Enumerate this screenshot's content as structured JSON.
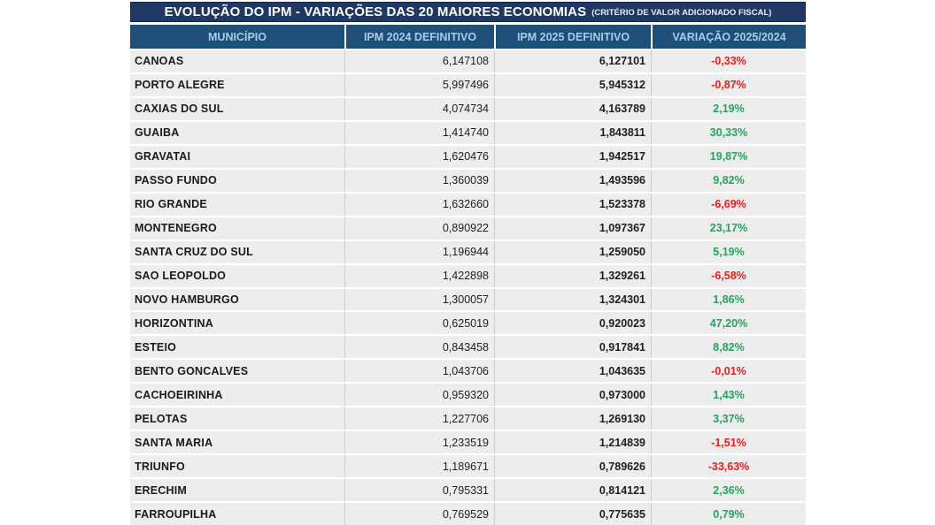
{
  "title_bar": {
    "title": "EVOLUÇÃO DO IPM - VARIAÇÕES DAS 20 MAIORES ECONOMIAS",
    "subtitle": "(CRITÉRIO DE VALOR ADICIONADO FISCAL)"
  },
  "colors": {
    "title_bg": "#1F3864",
    "header_bg": "#1F4E79",
    "header_text": "#A8CBE8",
    "row_bg": "#EDEDED",
    "negative": "#EE1C1C",
    "positive": "#23A45F"
  },
  "chart_data": {
    "type": "table",
    "title": "EVOLUÇÃO DO IPM - VARIAÇÕES DAS 20 MAIORES ECONOMIAS",
    "subtitle": "(CRITÉRIO DE VALOR ADICIONADO FISCAL)",
    "columns": [
      "MUNICÍPIO",
      "IPM 2024 DEFINITIVO",
      "IPM 2025 DEFINITIVO",
      "VARIAÇÃO 2025/2024"
    ],
    "rows": [
      [
        "CANOAS",
        "6,147108",
        "6,127101",
        "-0,33%"
      ],
      [
        "PORTO ALEGRE",
        "5,997496",
        "5,945312",
        "-0,87%"
      ],
      [
        "CAXIAS DO SUL",
        "4,074734",
        "4,163789",
        "2,19%"
      ],
      [
        "GUAIBA",
        "1,414740",
        "1,843811",
        "30,33%"
      ],
      [
        "GRAVATAI",
        "1,620476",
        "1,942517",
        "19,87%"
      ],
      [
        "PASSO FUNDO",
        "1,360039",
        "1,493596",
        "9,82%"
      ],
      [
        "RIO GRANDE",
        "1,632660",
        "1,523378",
        "-6,69%"
      ],
      [
        "MONTENEGRO",
        "0,890922",
        "1,097367",
        "23,17%"
      ],
      [
        "SANTA CRUZ DO SUL",
        "1,196944",
        "1,259050",
        "5,19%"
      ],
      [
        "SAO LEOPOLDO",
        "1,422898",
        "1,329261",
        "-6,58%"
      ],
      [
        "NOVO HAMBURGO",
        "1,300057",
        "1,324301",
        "1,86%"
      ],
      [
        "HORIZONTINA",
        "0,625019",
        "0,920023",
        "47,20%"
      ],
      [
        "ESTEIO",
        "0,843458",
        "0,917841",
        "8,82%"
      ],
      [
        "BENTO GONCALVES",
        "1,043706",
        "1,043635",
        "-0,01%"
      ],
      [
        "CACHOEIRINHA",
        "0,959320",
        "0,973000",
        "1,43%"
      ],
      [
        "PELOTAS",
        "1,227706",
        "1,269130",
        "3,37%"
      ],
      [
        "SANTA MARIA",
        "1,233519",
        "1,214839",
        "-1,51%"
      ],
      [
        "TRIUNFO",
        "1,189671",
        "0,789626",
        "-33,63%"
      ],
      [
        "ERECHIM",
        "0,795331",
        "0,814121",
        "2,36%"
      ],
      [
        "FARROUPILHA",
        "0,769529",
        "0,775635",
        "0,79%"
      ]
    ]
  }
}
